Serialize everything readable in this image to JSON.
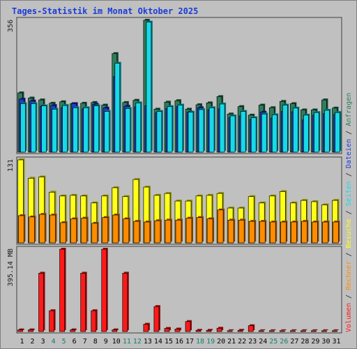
{
  "chart_data": {
    "type": "bar",
    "title": "Tages-Statistik im Monat Oktober 2025",
    "categories": [
      "1",
      "2",
      "3",
      "4",
      "5",
      "6",
      "7",
      "8",
      "9",
      "10",
      "11",
      "12",
      "13",
      "14",
      "15",
      "16",
      "17",
      "18",
      "19",
      "20",
      "21",
      "22",
      "23",
      "24",
      "25",
      "26",
      "27",
      "28",
      "29",
      "30",
      "31"
    ],
    "weekend_days": [
      "4",
      "5",
      "11",
      "12",
      "18",
      "19",
      "25",
      "26"
    ],
    "panels": [
      {
        "id": "hits",
        "ymax_label": "356",
        "ylim": [
          0,
          356
        ],
        "series": [
          {
            "name": "Anfragen",
            "color": "#2e7d5b",
            "values": [
              160,
              146,
              141,
              132,
              136,
              131,
              132,
              134,
              127,
              266,
              134,
              140,
              356,
              116,
              135,
              139,
              116,
              128,
              133,
              150,
              103,
              123,
              100,
              127,
              120,
              137,
              131,
              114,
              114,
              141,
              119
            ]
          },
          {
            "name": "Dateien",
            "color": "#1f3bd6",
            "values": [
              143,
              138,
              124,
              126,
              120,
              131,
              117,
              129,
              119,
              204,
              124,
              122,
              125,
              106,
              118,
              123,
              108,
              120,
              114,
              117,
              93,
              98,
              88,
              108,
              92,
              110,
              109,
              87,
              100,
              104,
              102
            ]
          },
          {
            "name": "Seiten",
            "color": "#18d9e8",
            "values": [
              131,
              131,
              125,
              116,
              126,
              120,
              120,
              125,
              110,
              240,
              118,
              133,
              351,
              110,
              123,
              127,
              108,
              115,
              120,
              130,
              98,
              110,
              93,
              103,
              101,
              127,
              119,
              100,
              107,
              113,
              107
            ]
          }
        ]
      },
      {
        "id": "visits",
        "ymax_label": "131",
        "ylim": [
          0,
          131
        ],
        "series": [
          {
            "name": "Besuche",
            "color": "#ffff1a",
            "values": [
              131,
              102,
              104,
              80,
              74,
              75,
              74,
              63,
              74,
              87,
              73,
              100,
              88,
              75,
              78,
              66,
              66,
              74,
              75,
              78,
              55,
              55,
              73,
              63,
              74,
              81,
              63,
              67,
              65,
              60,
              67
            ]
          },
          {
            "name": "Rechner",
            "color": "#ff8c00",
            "values": [
              43,
              41,
              45,
              44,
              32,
              38,
              39,
              31,
              40,
              44,
              38,
              34,
              33,
              35,
              36,
              36,
              39,
              40,
              38,
              52,
              36,
              36,
              34,
              34,
              33,
              33,
              33,
              34,
              33,
              33,
              33
            ]
          }
        ]
      },
      {
        "id": "volume",
        "ymax_label": "395.14 MB",
        "ylim": [
          0,
          395.14
        ],
        "series": [
          {
            "name": "Volumen",
            "color": "#ff1a1a",
            "values": [
              8,
              8,
              280,
              100,
              395,
              8,
              280,
              100,
              395,
              8,
              280,
              0,
              35,
              120,
              15,
              12,
              48,
              6,
              6,
              16,
              4,
              6,
              28,
              4,
              4,
              4,
              4,
              4,
              4,
              4,
              4
            ]
          }
        ]
      }
    ],
    "legend_right": [
      "Volumen",
      "/",
      "Rechner",
      "/",
      "Besuche",
      "/",
      "Seiten",
      "/",
      "Dateien",
      "/",
      "Anfragen"
    ],
    "grid": false,
    "background": "#c0c0c0",
    "title_color": "#0000ff",
    "weekend_color": "#12806a"
  }
}
